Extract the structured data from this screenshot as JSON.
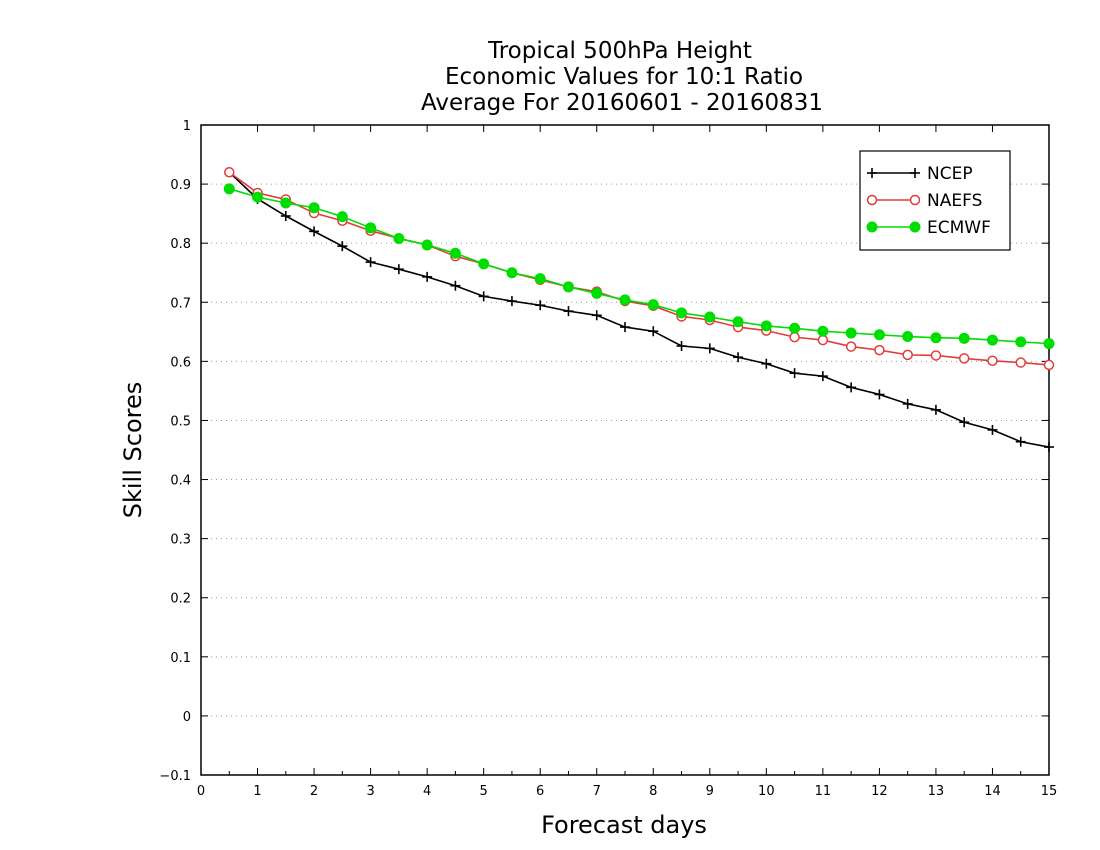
{
  "chart_data": {
    "type": "line",
    "title": [
      "Tropical 500hPa Height",
      "Economic Values for 10:1 Ratio",
      "Average For 20160601 - 20160831"
    ],
    "xlabel": "Forecast days",
    "ylabel": "Skill Scores",
    "xlim": [
      0,
      15
    ],
    "ylim": [
      -0.1,
      1
    ],
    "xticks": [
      "0",
      "1",
      "2",
      "3",
      "4",
      "5",
      "6",
      "7",
      "8",
      "9",
      "10",
      "11",
      "12",
      "13",
      "14",
      "15"
    ],
    "yticks": [
      "−0.1",
      "0",
      "0.1",
      "0.2",
      "0.3",
      "0.4",
      "0.5",
      "0.6",
      "0.7",
      "0.8",
      "0.9",
      "1"
    ],
    "grid": "horizontal dotted",
    "legend_position": "top-right",
    "x": [
      0.5,
      1,
      1.5,
      2,
      2.5,
      3,
      3.5,
      4,
      4.5,
      5,
      5.5,
      6,
      6.5,
      7,
      7.5,
      8,
      8.5,
      9,
      9.5,
      10,
      10.5,
      11,
      11.5,
      12,
      12.5,
      13,
      13.5,
      14,
      14.5,
      15
    ],
    "series": [
      {
        "name": "NCEP",
        "color": "#000000",
        "marker": "plus",
        "values": [
          0.92,
          0.875,
          0.846,
          0.82,
          0.795,
          0.768,
          0.756,
          0.743,
          0.728,
          0.71,
          0.702,
          0.695,
          0.685,
          0.678,
          0.658,
          0.651,
          0.626,
          0.622,
          0.607,
          0.596,
          0.58,
          0.575,
          0.556,
          0.544,
          0.528,
          0.518,
          0.497,
          0.484,
          0.464,
          0.455
        ]
      },
      {
        "name": "NAEFS",
        "color": "#e03c3c",
        "marker": "open-circle",
        "values": [
          0.92,
          0.885,
          0.874,
          0.851,
          0.838,
          0.821,
          0.808,
          0.797,
          0.778,
          0.765,
          0.75,
          0.738,
          0.726,
          0.718,
          0.702,
          0.694,
          0.676,
          0.67,
          0.658,
          0.652,
          0.641,
          0.636,
          0.625,
          0.619,
          0.611,
          0.61,
          0.605,
          0.601,
          0.598,
          0.594
        ]
      },
      {
        "name": "ECMWF",
        "color": "#00dd00",
        "marker": "filled-circle",
        "values": [
          0.892,
          0.878,
          0.868,
          0.86,
          0.845,
          0.826,
          0.808,
          0.797,
          0.783,
          0.765,
          0.75,
          0.74,
          0.726,
          0.715,
          0.704,
          0.696,
          0.682,
          0.675,
          0.667,
          0.66,
          0.656,
          0.651,
          0.648,
          0.645,
          0.642,
          0.64,
          0.639,
          0.636,
          0.633,
          0.63
        ]
      }
    ]
  }
}
